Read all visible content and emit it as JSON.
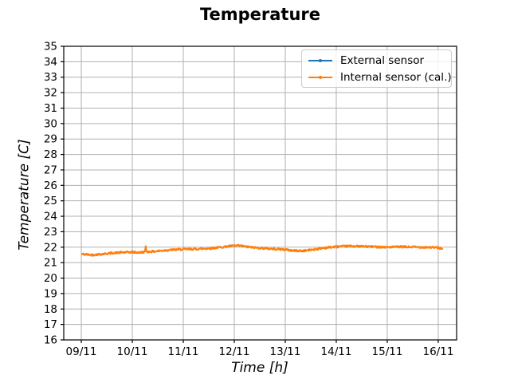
{
  "figure": {
    "background": "#ffffff"
  },
  "chart_data": {
    "type": "line",
    "title": "Temperature",
    "xlabel": "Time [h]",
    "ylabel": "Temperature [C]",
    "grid": true,
    "legend_position": "upper right",
    "x_unit": "days since first tick (09/11)",
    "x_ticks": {
      "positions": [
        0,
        1,
        2,
        3,
        4,
        5,
        6,
        7
      ],
      "labels": [
        "09/11",
        "10/11",
        "11/11",
        "12/11",
        "13/11",
        "14/11",
        "15/11",
        "16/11"
      ]
    },
    "y_ticks": {
      "min": 16,
      "max": 35,
      "step": 1
    },
    "xlim": [
      -0.344,
      7.36
    ],
    "ylim": [
      16,
      35
    ],
    "axis_color": "#000000",
    "grid_color": "#b0b0b0",
    "series": [
      {
        "name": "External sensor",
        "color": "#1f77b4",
        "note": "hidden underneath calibrated internal sensor trace",
        "x": [
          0.02,
          0.2,
          0.4,
          0.6,
          0.8,
          1.0,
          1.15,
          1.25,
          1.265,
          1.28,
          1.45,
          1.65,
          1.85,
          2.0,
          2.25,
          2.5,
          2.75,
          2.95,
          3.1,
          3.25,
          3.45,
          3.7,
          3.95,
          4.15,
          4.35,
          4.55,
          4.8,
          5.0,
          5.25,
          5.5,
          5.75,
          6.0,
          6.25,
          6.5,
          6.75,
          7.0,
          7.08
        ],
        "y": [
          21.55,
          21.5,
          21.55,
          21.62,
          21.66,
          21.68,
          21.65,
          21.7,
          22.02,
          21.7,
          21.73,
          21.8,
          21.84,
          21.86,
          21.88,
          21.92,
          22.0,
          22.08,
          22.1,
          22.02,
          21.96,
          21.9,
          21.86,
          21.78,
          21.76,
          21.85,
          21.97,
          22.03,
          22.07,
          22.05,
          22.03,
          22.0,
          22.02,
          22.01,
          22.0,
          21.97,
          21.9
        ]
      },
      {
        "name": "Internal sensor (cal.)",
        "color": "#ff7f0e",
        "x": [
          0.02,
          0.2,
          0.4,
          0.6,
          0.8,
          1.0,
          1.15,
          1.25,
          1.265,
          1.28,
          1.45,
          1.65,
          1.85,
          2.0,
          2.25,
          2.5,
          2.75,
          2.95,
          3.1,
          3.25,
          3.45,
          3.7,
          3.95,
          4.15,
          4.35,
          4.55,
          4.8,
          5.0,
          5.25,
          5.5,
          5.75,
          6.0,
          6.25,
          6.5,
          6.75,
          7.0,
          7.08
        ],
        "y": [
          21.55,
          21.5,
          21.55,
          21.62,
          21.66,
          21.68,
          21.65,
          21.7,
          22.02,
          21.7,
          21.73,
          21.8,
          21.84,
          21.86,
          21.88,
          21.92,
          22.0,
          22.08,
          22.1,
          22.02,
          21.96,
          21.9,
          21.86,
          21.78,
          21.76,
          21.85,
          21.97,
          22.03,
          22.07,
          22.05,
          22.03,
          22.0,
          22.02,
          22.01,
          22.0,
          21.97,
          21.9
        ]
      }
    ],
    "noise_band_celsius": 0.12
  }
}
